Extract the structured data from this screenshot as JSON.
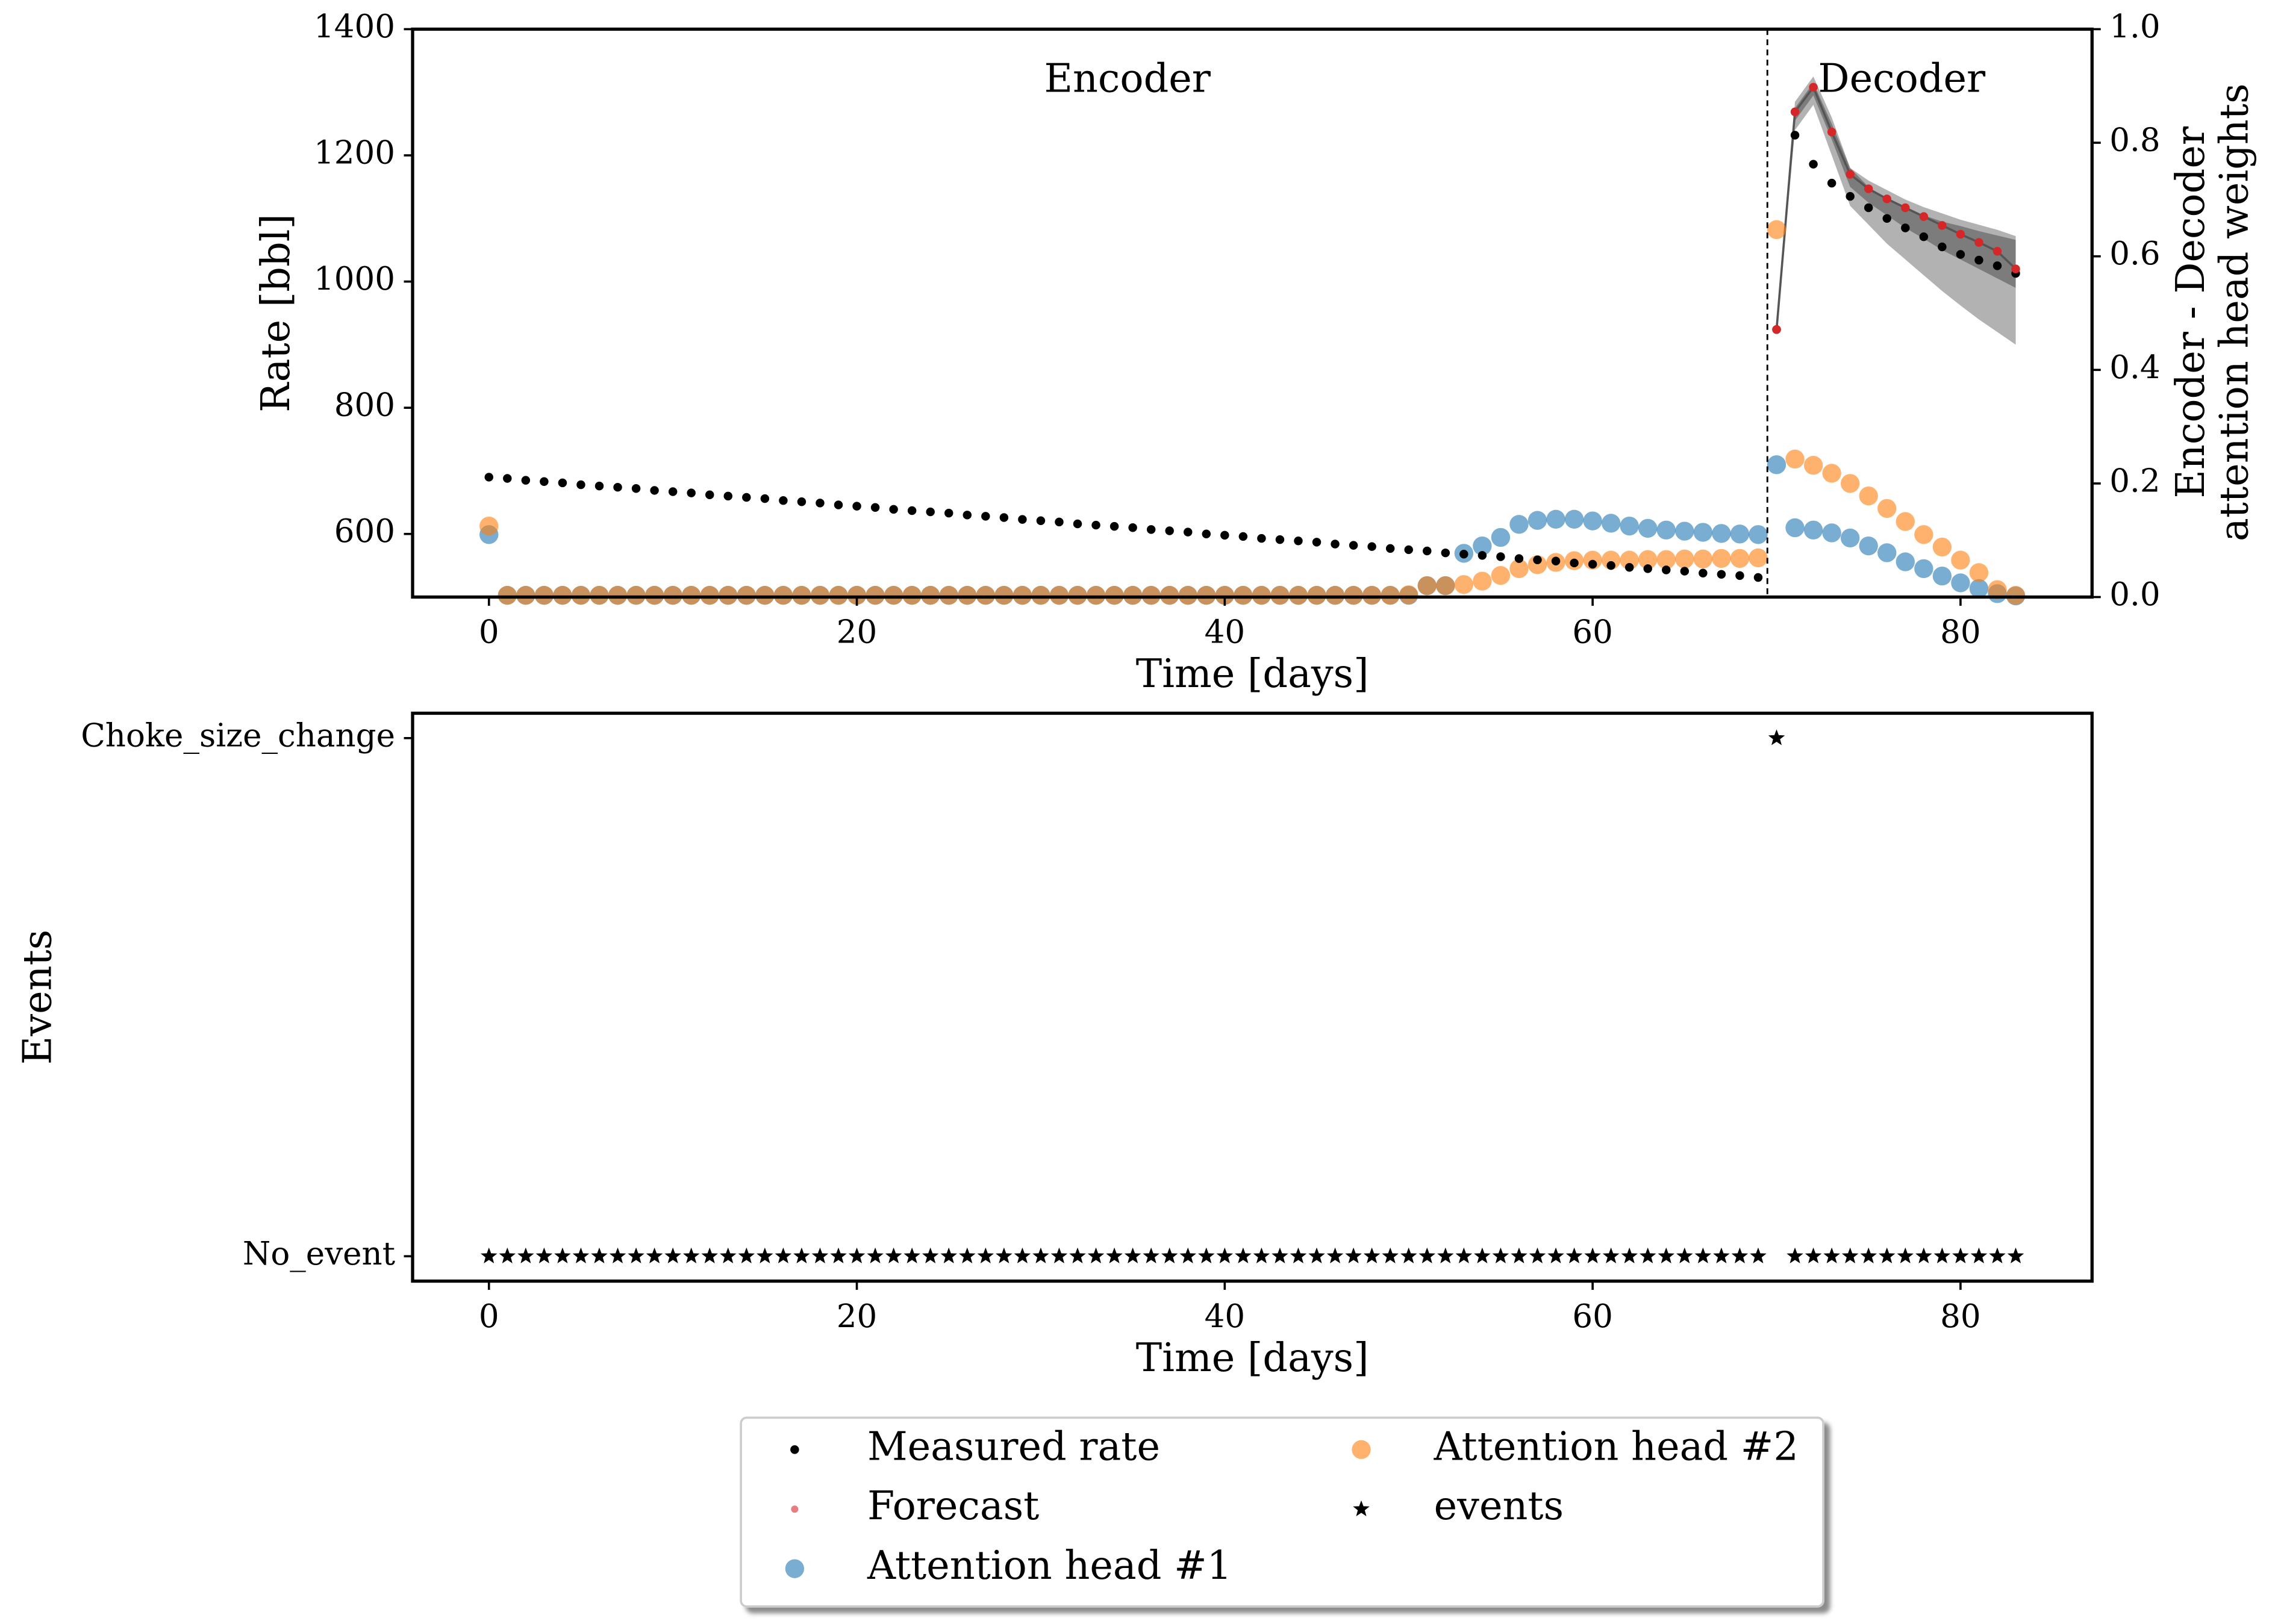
{
  "chart_data": [
    {
      "type": "scatter",
      "xlabel": "Time [days]",
      "ylabel": "Rate [bbl]",
      "y2label": [
        "Encoder - Decoder",
        "attention head weights"
      ],
      "annotations": [
        "Encoder",
        "Decoder"
      ],
      "split": 69.5,
      "xlim": [
        -4.15,
        87.15
      ],
      "xticks": [
        0,
        20,
        40,
        60,
        80
      ],
      "ylim": [
        500,
        1400
      ],
      "yticks": [
        600,
        800,
        1000,
        1200,
        1400
      ],
      "y2lim": [
        0,
        1
      ],
      "y2ticks": [
        {
          "value": 0,
          "label": "0.0"
        },
        0.2,
        0.4,
        0.6,
        0.8,
        {
          "value": 1,
          "label": "1.0"
        }
      ],
      "x": [
        0,
        1,
        2,
        3,
        4,
        5,
        6,
        7,
        8,
        9,
        10,
        11,
        12,
        13,
        14,
        15,
        16,
        17,
        18,
        19,
        20,
        21,
        22,
        23,
        24,
        25,
        26,
        27,
        28,
        29,
        30,
        31,
        32,
        33,
        34,
        35,
        36,
        37,
        38,
        39,
        40,
        41,
        42,
        43,
        44,
        45,
        46,
        47,
        48,
        49,
        50,
        51,
        52,
        53,
        54,
        55,
        56,
        57,
        58,
        59,
        60,
        61,
        62,
        63,
        64,
        65,
        66,
        67,
        68,
        69,
        70,
        71,
        72,
        73,
        74,
        75,
        76,
        77,
        78,
        79,
        80,
        81,
        82,
        83
      ],
      "bands": [
        {
          "x": [
            70,
            71,
            72,
            73,
            74,
            75,
            76,
            77,
            78,
            79,
            80,
            81,
            82,
            83
          ],
          "lower": [
            924,
            1240,
            1280,
            1200,
            1120,
            1090,
            1060,
            1035,
            1010,
            985,
            962,
            940,
            920,
            900
          ],
          "upper": [
            924,
            1285,
            1325,
            1260,
            1180,
            1150,
            1130,
            1115,
            1105,
            1095,
            1088,
            1080,
            1073,
            1066
          ]
        },
        {
          "x": [
            70,
            71,
            72,
            73,
            74,
            75,
            76,
            77,
            78,
            79,
            80,
            81,
            82,
            83
          ],
          "lower": [
            924,
            1255,
            1295,
            1225,
            1150,
            1125,
            1105,
            1085,
            1068,
            1050,
            1035,
            1020,
            1005,
            990
          ],
          "upper": [
            924,
            1275,
            1315,
            1250,
            1180,
            1160,
            1145,
            1130,
            1118,
            1108,
            1098,
            1090,
            1082,
            1072
          ]
        }
      ],
      "band_color": "#000000",
      "series": [
        {
          "name": "Measured rate",
          "color": "#000000",
          "marker": "dot",
          "values": [
            690,
            688,
            685,
            683,
            681,
            678,
            676,
            674,
            672,
            669,
            667,
            665,
            662,
            660,
            658,
            656,
            653,
            651,
            649,
            646,
            644,
            642,
            639,
            637,
            635,
            633,
            630,
            628,
            626,
            623,
            621,
            619,
            616,
            614,
            612,
            610,
            607,
            605,
            603,
            600,
            598,
            596,
            593,
            591,
            589,
            587,
            584,
            582,
            580,
            577,
            575,
            573,
            570,
            568,
            566,
            564,
            561,
            559,
            557,
            554,
            552,
            550,
            547,
            545,
            543,
            541,
            538,
            536,
            534,
            531,
            924,
            1232,
            1186,
            1156,
            1135,
            1117,
            1100,
            1085,
            1071,
            1055,
            1043,
            1034,
            1025,
            1013
          ]
        },
        {
          "name": "Forecast",
          "color": "#d62728",
          "line_color": "#555555",
          "marker": "dot",
          "x": [
            70,
            71,
            72,
            73,
            74,
            75,
            76,
            77,
            78,
            79,
            80,
            81,
            82,
            83
          ],
          "values": [
            924,
            1269,
            1308,
            1237,
            1170,
            1147,
            1131,
            1117,
            1103,
            1089,
            1075,
            1062,
            1048,
            1020
          ]
        },
        {
          "name": "Attention head #1",
          "color": "#1f77b4",
          "marker": "circle",
          "axis": "y2",
          "values": [
            0.11,
            0.003,
            0.003,
            0.003,
            0.003,
            0.003,
            0.003,
            0.003,
            0.003,
            0.003,
            0.003,
            0.003,
            0.003,
            0.003,
            0.003,
            0.003,
            0.003,
            0.003,
            0.003,
            0.003,
            0.003,
            0.003,
            0.003,
            0.003,
            0.003,
            0.003,
            0.003,
            0.003,
            0.003,
            0.003,
            0.003,
            0.003,
            0.003,
            0.003,
            0.003,
            0.003,
            0.003,
            0.003,
            0.003,
            0.003,
            0.003,
            0.003,
            0.003,
            0.003,
            0.003,
            0.003,
            0.003,
            0.003,
            0.003,
            0.003,
            0.003,
            0.02,
            0.02,
            0.077,
            0.09,
            0.105,
            0.128,
            0.135,
            0.137,
            0.137,
            0.134,
            0.13,
            0.125,
            0.121,
            0.118,
            0.116,
            0.114,
            0.112,
            0.111,
            0.11,
            0.233,
            0.122,
            0.118,
            0.113,
            0.104,
            0.09,
            0.078,
            0.062,
            0.05,
            0.037,
            0.025,
            0.015,
            0.006,
            0.002
          ]
        },
        {
          "name": "Attention head #2",
          "color": "#ff7f0e",
          "marker": "circle",
          "axis": "y2",
          "values": [
            0.125,
            0.003,
            0.003,
            0.003,
            0.003,
            0.003,
            0.003,
            0.003,
            0.003,
            0.003,
            0.003,
            0.003,
            0.003,
            0.003,
            0.003,
            0.003,
            0.003,
            0.003,
            0.003,
            0.003,
            0.003,
            0.003,
            0.003,
            0.003,
            0.003,
            0.003,
            0.003,
            0.003,
            0.003,
            0.003,
            0.003,
            0.003,
            0.003,
            0.003,
            0.003,
            0.003,
            0.003,
            0.003,
            0.003,
            0.003,
            0.003,
            0.003,
            0.003,
            0.003,
            0.003,
            0.003,
            0.003,
            0.003,
            0.003,
            0.003,
            0.004,
            0.02,
            0.02,
            0.022,
            0.028,
            0.038,
            0.05,
            0.057,
            0.061,
            0.064,
            0.065,
            0.065,
            0.065,
            0.066,
            0.066,
            0.067,
            0.067,
            0.068,
            0.068,
            0.069,
            0.647,
            0.243,
            0.232,
            0.218,
            0.2,
            0.178,
            0.156,
            0.133,
            0.11,
            0.088,
            0.065,
            0.043,
            0.013,
            0.003
          ]
        }
      ]
    },
    {
      "type": "scatter",
      "xlabel": "Time [days]",
      "ylabel": "Events",
      "xlim": [
        -4.15,
        87.15
      ],
      "xticks": [
        0,
        20,
        40,
        60,
        80
      ],
      "ylim": [
        -0.048,
        1.048
      ],
      "yticks": [
        {
          "value": 0,
          "label": "No_event"
        },
        {
          "value": 1,
          "label": "Choke_size_change"
        }
      ],
      "legend": "lower center",
      "x": [
        0,
        1,
        2,
        3,
        4,
        5,
        6,
        7,
        8,
        9,
        10,
        11,
        12,
        13,
        14,
        15,
        16,
        17,
        18,
        19,
        20,
        21,
        22,
        23,
        24,
        25,
        26,
        27,
        28,
        29,
        30,
        31,
        32,
        33,
        34,
        35,
        36,
        37,
        38,
        39,
        40,
        41,
        42,
        43,
        44,
        45,
        46,
        47,
        48,
        49,
        50,
        51,
        52,
        53,
        54,
        55,
        56,
        57,
        58,
        59,
        60,
        61,
        62,
        63,
        64,
        65,
        66,
        67,
        68,
        69,
        70,
        71,
        72,
        73,
        74,
        75,
        76,
        77,
        78,
        79,
        80,
        81,
        82,
        83
      ],
      "series": [
        {
          "name": "events",
          "color": "#000000",
          "marker": "star",
          "values": [
            0,
            0,
            0,
            0,
            0,
            0,
            0,
            0,
            0,
            0,
            0,
            0,
            0,
            0,
            0,
            0,
            0,
            0,
            0,
            0,
            0,
            0,
            0,
            0,
            0,
            0,
            0,
            0,
            0,
            0,
            0,
            0,
            0,
            0,
            0,
            0,
            0,
            0,
            0,
            0,
            0,
            0,
            0,
            0,
            0,
            0,
            0,
            0,
            0,
            0,
            0,
            0,
            0,
            0,
            0,
            0,
            0,
            0,
            0,
            0,
            0,
            0,
            0,
            0,
            0,
            0,
            0,
            0,
            0,
            0,
            1,
            0,
            0,
            0,
            0,
            0,
            0,
            0,
            0,
            0,
            0,
            0,
            0,
            0
          ]
        }
      ]
    }
  ]
}
